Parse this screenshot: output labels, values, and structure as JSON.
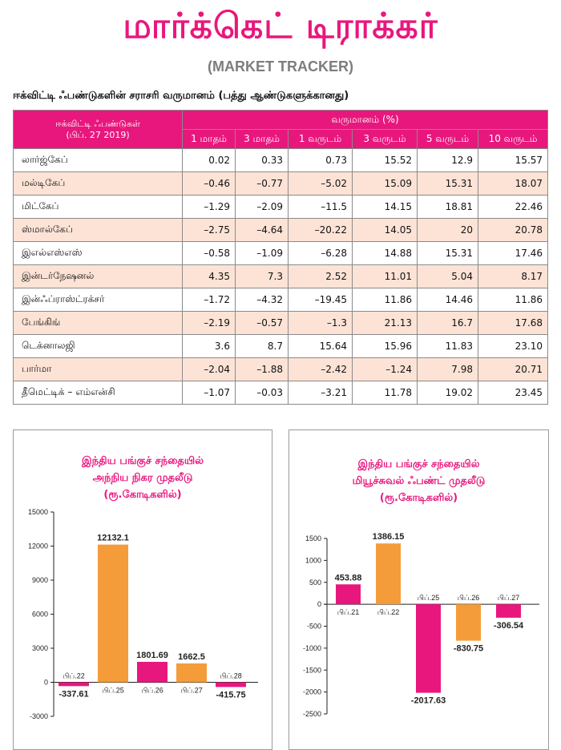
{
  "header": {
    "title": "மார்க்கெட் டிராக்கர்",
    "subtitle": "(MARKET TRACKER)"
  },
  "table": {
    "caption": "ஈக்விட்டி ஃபண்டுகளின் சராசரி வருமானம் (பத்து ஆண்டுகளுக்கானது)",
    "stub_header_line1": "ஈக்விட்டி ஃபண்டுகள்",
    "stub_header_line2": "(பிப். 27 2019)",
    "group_header": "வருமானம் (%)",
    "columns": [
      "1 மாதம்",
      "3 மாதம்",
      "1 வருடம்",
      "3 வருடம்",
      "5 வருடம்",
      "10 வருடம்"
    ],
    "rows": [
      {
        "name": "லார்ஜ்கேப்",
        "values": [
          "0.02",
          "0.33",
          "0.73",
          "15.52",
          "12.9",
          "15.57"
        ]
      },
      {
        "name": "மல்டிகேப்",
        "values": [
          "–0.46",
          "–0.77",
          "–5.02",
          "15.09",
          "15.31",
          "18.07"
        ]
      },
      {
        "name": "மிட்கேப்",
        "values": [
          "–1.29",
          "–2.09",
          "–11.5",
          "14.15",
          "18.81",
          "22.46"
        ]
      },
      {
        "name": "ஸ்மால்கேப்",
        "values": [
          "–2.75",
          "–4.64",
          "–20.22",
          "14.05",
          "20",
          "20.78"
        ]
      },
      {
        "name": "இஎல்எஸ்எஸ்",
        "values": [
          "–0.58",
          "–1.09",
          "–6.28",
          "14.88",
          "15.31",
          "17.46"
        ]
      },
      {
        "name": "இன்டர்நேஷனல்",
        "values": [
          "4.35",
          "7.3",
          "2.52",
          "11.01",
          "5.04",
          "8.17"
        ]
      },
      {
        "name": "இன்ஃப்ராஸ்ட்ரக்சர்",
        "values": [
          "–1.72",
          "–4.32",
          "–19.45",
          "11.86",
          "14.46",
          "11.86"
        ]
      },
      {
        "name": "பேங்கிங்",
        "values": [
          "–2.19",
          "–0.57",
          "–1.3",
          "21.13",
          "16.7",
          "17.68"
        ]
      },
      {
        "name": "டெக்னாலஜி",
        "values": [
          "3.6",
          "8.7",
          "15.64",
          "15.96",
          "11.83",
          "23.10"
        ]
      },
      {
        "name": "பார்மா",
        "values": [
          "–2.04",
          "–1.88",
          "–2.42",
          "–1.24",
          "7.98",
          "20.71"
        ]
      },
      {
        "name": "தீமெட்டிக் – எம்என்சி",
        "values": [
          "–1.07",
          "–0.03",
          "–3.21",
          "11.78",
          "19.02",
          "23.45"
        ]
      }
    ]
  },
  "chart_data": [
    {
      "type": "bar",
      "title_lines": [
        "இந்திய பங்குச் சந்தையில்",
        "அந்நிய நிகர முதலீடு",
        "(ரூ.கோடிகளில்)"
      ],
      "categories": [
        "பிப்.22",
        "பிப்.25",
        "பிப்.26",
        "பிப்.27",
        "பிப்.28"
      ],
      "values": [
        -337.61,
        12132.1,
        1801.69,
        1662.5,
        -415.75
      ],
      "value_labels": [
        "-337.61",
        "12132.1",
        "1801.69",
        "1662.5",
        "-415.75"
      ],
      "colors": [
        "#e8177d",
        "#f59c3a",
        "#e8177d",
        "#f59c3a",
        "#e8177d"
      ],
      "ylim": [
        -3000,
        15000
      ],
      "yticks": [
        -3000,
        0,
        3000,
        6000,
        9000,
        12000,
        15000
      ],
      "ytick_labels": [
        "-3000",
        "0",
        "3000",
        "6000",
        "9000",
        "12000",
        "15000"
      ],
      "grid": false
    },
    {
      "type": "bar",
      "title_lines": [
        "இந்திய பங்குச் சந்தையில்",
        "மியூச்சுவல் ஃபண்ட் முதலீடு",
        "(ரூ.கோடிகளில்)"
      ],
      "categories": [
        "பிப்.21",
        "பிப்.22",
        "பிப்.25",
        "பிப்.26",
        "பிப்.27"
      ],
      "values": [
        453.88,
        1386.15,
        -2017.63,
        -830.75,
        -306.54
      ],
      "value_labels": [
        "453.88",
        "1386.15",
        "-2017.63",
        "-830.75",
        "-306.54"
      ],
      "colors": [
        "#e8177d",
        "#f59c3a",
        "#e8177d",
        "#f59c3a",
        "#e8177d"
      ],
      "ylim": [
        -2500,
        1500
      ],
      "yticks": [
        -2500,
        -2000,
        -1500,
        -1000,
        -500,
        0,
        500,
        1000,
        1500
      ],
      "ytick_labels": [
        "-2500",
        "-2000",
        "-1500",
        "-1000",
        "-500",
        "0",
        "500",
        "1000",
        "1500"
      ],
      "grid": false
    }
  ]
}
